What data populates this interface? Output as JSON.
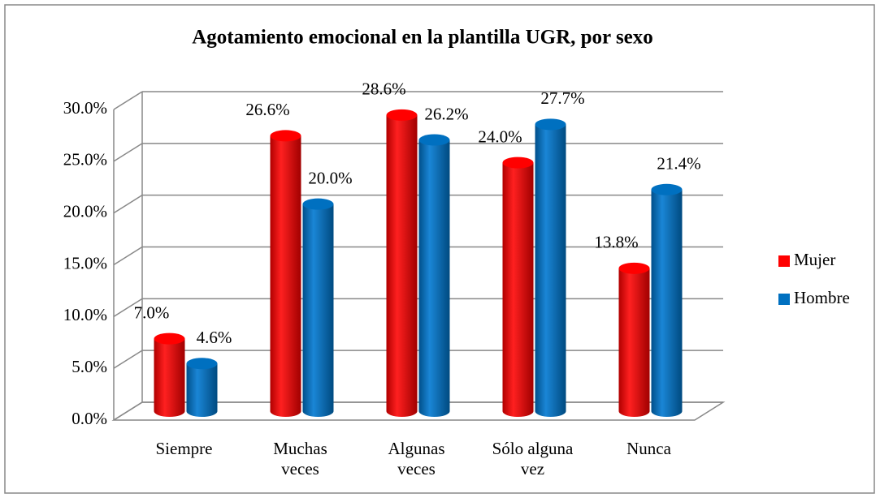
{
  "chart_data": {
    "type": "bar3d",
    "title": "Agotamiento emocional en la plantilla UGR, por sexo",
    "categories": [
      "Siempre",
      "Muchas veces",
      "Algunas veces",
      "Sólo alguna vez",
      "Nunca"
    ],
    "series": [
      {
        "name": "Mujer",
        "color": "#ff0000",
        "values": [
          7.0,
          26.6,
          28.6,
          24.0,
          13.8
        ],
        "value_labels": [
          "7.0%",
          "26.6%",
          "28.6%",
          "24.0%",
          "13.8%"
        ]
      },
      {
        "name": "Hombre",
        "color": "#0070c0",
        "values": [
          4.6,
          20.0,
          26.2,
          27.7,
          21.4
        ],
        "value_labels": [
          "4.6%",
          "20.0%",
          "26.2%",
          "27.7%",
          "21.4%"
        ]
      }
    ],
    "ylim": [
      0,
      30
    ],
    "yticks": [
      {
        "value": 0,
        "label": "0.0%"
      },
      {
        "value": 5,
        "label": "5.0%"
      },
      {
        "value": 10,
        "label": "10.0%"
      },
      {
        "value": 15,
        "label": "15.0%"
      },
      {
        "value": 20,
        "label": "20.0%"
      },
      {
        "value": 25,
        "label": "25.0%"
      },
      {
        "value": 30,
        "label": "30.0%"
      }
    ],
    "grid": true,
    "legend": "right"
  }
}
